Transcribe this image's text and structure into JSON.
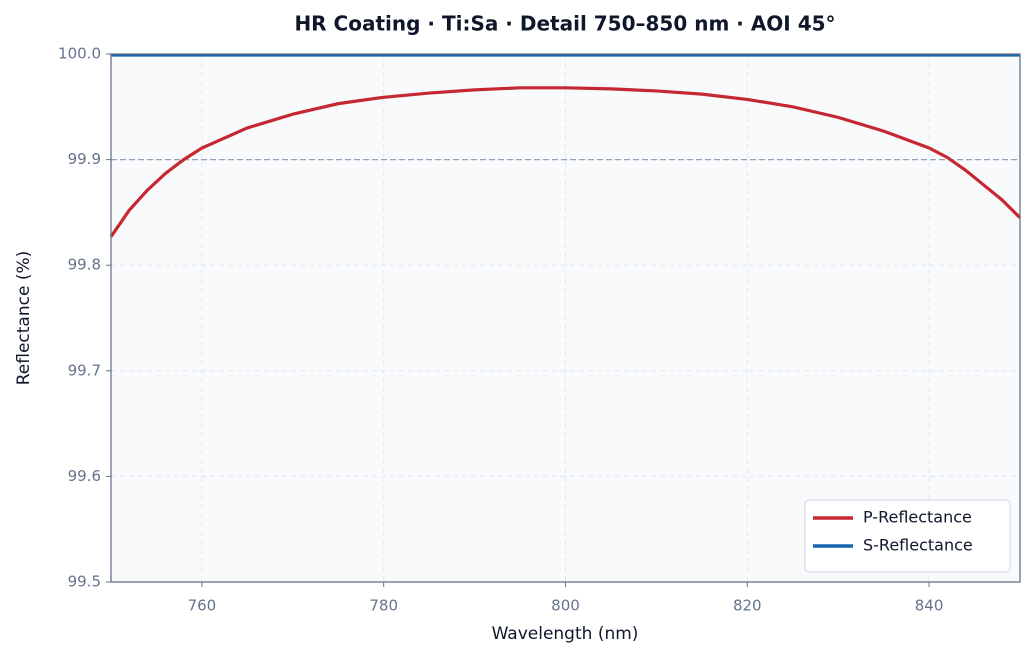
{
  "chart_data": {
    "type": "line",
    "title": "HR Coating · Ti:Sa · Detail 750–850 nm · AOI 45°",
    "x_label": "Wavelength (nm)",
    "y_label": "Reflectance (%)",
    "x": [
      750,
      752,
      754,
      756,
      758,
      760,
      765,
      770,
      775,
      780,
      785,
      790,
      795,
      800,
      805,
      810,
      815,
      820,
      825,
      830,
      835,
      840,
      842,
      844,
      846,
      848,
      850
    ],
    "series": [
      {
        "name": "P-Reflectance",
        "color": "#c62832",
        "values": [
          99.827,
          99.852,
          99.871,
          99.887,
          99.9,
          99.911,
          99.93,
          99.943,
          99.953,
          99.959,
          99.963,
          99.966,
          99.968,
          99.968,
          99.967,
          99.965,
          99.962,
          99.957,
          99.95,
          99.94,
          99.927,
          99.911,
          99.902,
          99.89,
          99.876,
          99.862,
          99.845
        ]
      },
      {
        "name": "S-Reflectance",
        "color": "#1565b0",
        "values": [
          99.999,
          99.999,
          99.999,
          99.999,
          99.999,
          99.999,
          99.999,
          99.999,
          99.999,
          99.999,
          99.999,
          99.999,
          99.999,
          99.999,
          99.999,
          99.999,
          99.999,
          99.999,
          99.999,
          99.999,
          99.999,
          99.999,
          99.999,
          99.999,
          99.999,
          99.999,
          99.999
        ]
      }
    ],
    "xlim": [
      750,
      850
    ],
    "xticks": [
      760,
      780,
      800,
      820,
      840
    ],
    "ylim": [
      99.5,
      100
    ],
    "yticks": [
      99.5,
      99.6,
      99.7,
      99.8,
      99.9,
      {
        "value": 100,
        "label": "100.0"
      }
    ],
    "reference_line": 99.9,
    "grid": true,
    "legend": "lower right"
  }
}
